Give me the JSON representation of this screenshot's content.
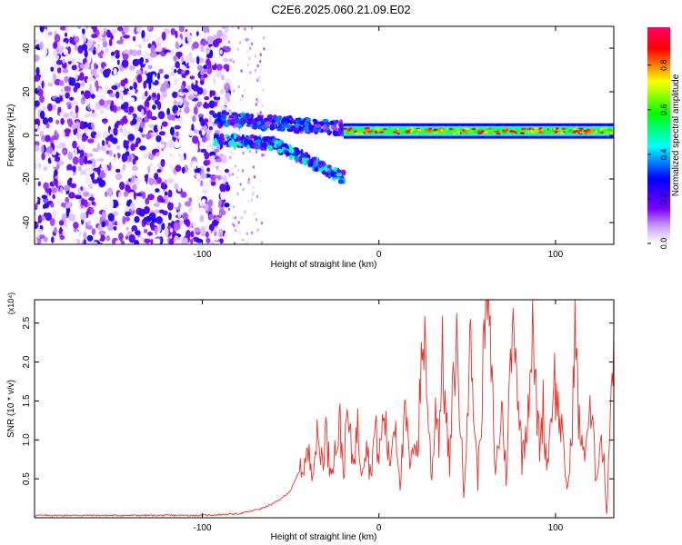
{
  "title": "C2E6.2025.060.21.09.E02",
  "chart_data": [
    {
      "type": "heatmap",
      "xlabel": "Height of straight line (km)",
      "ylabel": "Frequency (Hz)",
      "xlim": [
        -195,
        133
      ],
      "ylim": [
        -50,
        50
      ],
      "xticks": [
        -100,
        0,
        100
      ],
      "yticks": [
        -40,
        -20,
        0,
        20,
        40
      ],
      "colorbar": {
        "label": "Normalized spectral amplitude",
        "range": [
          0,
          0.97
        ],
        "ticks": [
          0.0,
          0.2,
          0.4,
          0.6,
          0.8
        ],
        "colormap": [
          "#ffffff",
          "#7b00ff",
          "#0000ff",
          "#00ffff",
          "#00ff00",
          "#ffff00",
          "#ff0000",
          "#ff0066"
        ]
      },
      "regions": [
        {
          "name": "noise",
          "x": [
            -195,
            -85
          ],
          "f": [
            -50,
            50
          ],
          "amplitude": 0.12
        },
        {
          "name": "sparse noise",
          "x": [
            -85,
            -65
          ],
          "f": [
            -50,
            50
          ],
          "amplitude": 0.03
        },
        {
          "name": "upper branch",
          "x": [
            -93,
            -20
          ],
          "f": [
            8,
            3
          ],
          "amplitude": 0.2
        },
        {
          "name": "lower branch",
          "x": [
            -93,
            -20
          ],
          "f": [
            0,
            -20
          ],
          "amplitude": 0.25
        },
        {
          "name": "steady band",
          "x": [
            -20,
            133
          ],
          "f": [
            1.5,
            2.5
          ],
          "amplitude": 0.8
        }
      ],
      "grid": false
    },
    {
      "type": "line",
      "xlabel": "Height of straight line (km)",
      "ylabel": "SNR (10 * v/v)",
      "y_multiplier": "(x10⁴)",
      "xlim": [
        -195,
        133
      ],
      "ylim": [
        0,
        2.8
      ],
      "xticks": [
        -100,
        0,
        100
      ],
      "yticks": [
        0.5,
        1.0,
        1.5,
        2.0,
        2.5
      ],
      "color": "#e8322a",
      "grid": false,
      "series": [
        {
          "points": [
            [
              -195,
              0.03
            ],
            [
              -150,
              0.03
            ],
            [
              -100,
              0.03
            ],
            [
              -90,
              0.04
            ],
            [
              -80,
              0.05
            ],
            [
              -75,
              0.07
            ],
            [
              -70,
              0.1
            ],
            [
              -65,
              0.13
            ],
            [
              -60,
              0.18
            ],
            [
              -55,
              0.25
            ],
            [
              -50,
              0.35
            ],
            [
              -45,
              0.6
            ],
            [
              -42,
              0.75
            ],
            [
              -40,
              0.85
            ],
            [
              -38,
              0.7
            ],
            [
              -35,
              1.05
            ],
            [
              -32,
              0.8
            ],
            [
              -30,
              1.2
            ],
            [
              -28,
              0.7
            ],
            [
              -25,
              0.9
            ],
            [
              -22,
              1.25
            ],
            [
              -20,
              0.6
            ],
            [
              -18,
              1.4
            ],
            [
              -15,
              0.8
            ],
            [
              -12,
              1.2
            ],
            [
              -10,
              0.7
            ],
            [
              -7,
              1.1
            ],
            [
              -5,
              0.6
            ],
            [
              -2,
              1.2
            ],
            [
              0,
              0.8
            ],
            [
              3,
              1.45
            ],
            [
              6,
              0.7
            ],
            [
              9,
              1.4
            ],
            [
              12,
              0.5
            ],
            [
              15,
              1.4
            ],
            [
              18,
              0.6
            ],
            [
              20,
              1.2
            ],
            [
              22,
              0.9
            ],
            [
              24,
              2.1
            ],
            [
              26,
              2.45
            ],
            [
              28,
              1.3
            ],
            [
              30,
              0.5
            ],
            [
              32,
              1.6
            ],
            [
              34,
              1.1
            ],
            [
              36,
              2.25
            ],
            [
              38,
              1.3
            ],
            [
              40,
              0.7
            ],
            [
              42,
              1.7
            ],
            [
              44,
              2.4
            ],
            [
              46,
              1.4
            ],
            [
              48,
              0.3
            ],
            [
              50,
              1.55
            ],
            [
              52,
              2.4
            ],
            [
              54,
              1.3
            ],
            [
              56,
              0.5
            ],
            [
              58,
              1.5
            ],
            [
              60,
              2.6
            ],
            [
              62,
              2.82
            ],
            [
              64,
              1.8
            ],
            [
              66,
              0.6
            ],
            [
              68,
              1.1
            ],
            [
              70,
              1.5
            ],
            [
              72,
              0.5
            ],
            [
              74,
              1.8
            ],
            [
              76,
              2.58
            ],
            [
              77,
              2.5
            ],
            [
              79,
              1.6
            ],
            [
              81,
              0.8
            ],
            [
              83,
              1.2
            ],
            [
              85,
              1.75
            ],
            [
              87,
              2.5
            ],
            [
              89,
              1.6
            ],
            [
              91,
              1.0
            ],
            [
              93,
              1.5
            ],
            [
              95,
              0.7
            ],
            [
              97,
              1.2
            ],
            [
              99,
              2.0
            ],
            [
              101,
              1.5
            ],
            [
              103,
              1.3
            ],
            [
              105,
              0.7
            ],
            [
              107,
              0.4
            ],
            [
              109,
              1.0
            ],
            [
              111,
              2.6
            ],
            [
              113,
              1.4
            ],
            [
              115,
              0.9
            ],
            [
              117,
              1.0
            ],
            [
              119,
              1.4
            ],
            [
              121,
              1.2
            ],
            [
              123,
              0.5
            ],
            [
              125,
              1.1
            ],
            [
              127,
              0.9
            ],
            [
              129,
              0.05
            ],
            [
              131,
              1.5
            ],
            [
              133,
              2.4
            ]
          ]
        }
      ]
    }
  ]
}
